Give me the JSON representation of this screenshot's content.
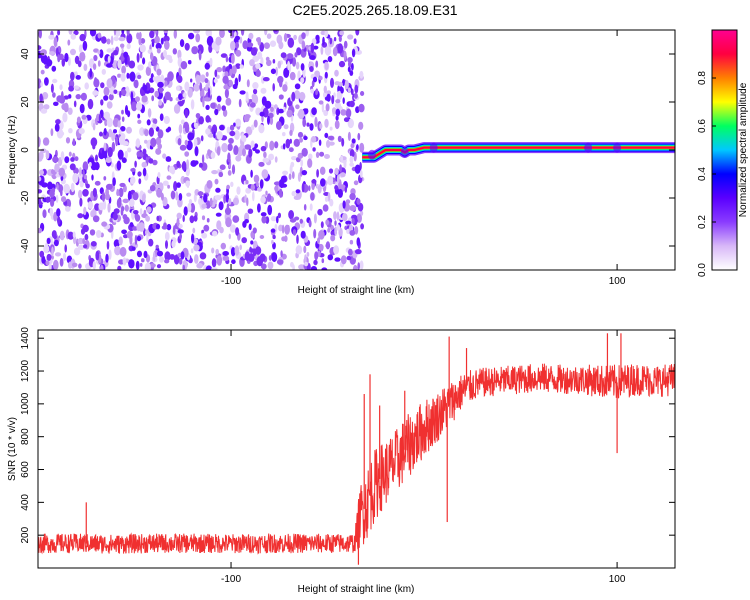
{
  "title": "C2E5.2025.265.18.09.E31",
  "chart_data": [
    {
      "type": "heatmap",
      "title": "",
      "xlabel": "Height of straight line (km)",
      "ylabel": "Frequency (Hz)",
      "xlim": [
        -200,
        130
      ],
      "ylim": [
        -50,
        50
      ],
      "xticks": [
        -100,
        100
      ],
      "yticks": [
        -40,
        -20,
        0,
        20,
        40
      ],
      "colorbar": {
        "label": "Normalized spectral amplitude",
        "range": [
          0.0,
          1.0
        ],
        "ticks": [
          0.0,
          0.2,
          0.4,
          0.6,
          0.8
        ],
        "colors": [
          "#ffffff",
          "#d8b8f8",
          "#8a3cff",
          "#5a00ff",
          "#0000ff",
          "#00c8ff",
          "#00ff60",
          "#ffff00",
          "#ff8000",
          "#ff0040",
          "#ff0090"
        ]
      },
      "noise_region": {
        "x": [
          -200,
          -32
        ],
        "y": [
          -50,
          50
        ],
        "amplitude": 0.15
      },
      "signal_line": {
        "frequency": 0.5,
        "amplitude": 0.9,
        "points": [
          [
            -32,
            -3
          ],
          [
            -28,
            -3
          ],
          [
            -26,
            -3
          ],
          [
            -24,
            -2
          ],
          [
            -22,
            -1
          ],
          [
            -20,
            0
          ],
          [
            -15,
            0
          ],
          [
            -12,
            0
          ],
          [
            -10,
            -1
          ],
          [
            -8,
            0
          ],
          [
            -5,
            0
          ],
          [
            0,
            1
          ],
          [
            5,
            1
          ],
          [
            10,
            1
          ],
          [
            130,
            1
          ]
        ]
      }
    },
    {
      "type": "line",
      "title": "",
      "xlabel": "Height of straight line (km)",
      "ylabel": "SNR (10 * v/v)",
      "xlim": [
        -200,
        130
      ],
      "ylim": [
        0,
        1450
      ],
      "xticks": [
        -100,
        100
      ],
      "yticks": [
        200,
        400,
        600,
        800,
        1000,
        1200,
        1400
      ],
      "series": [
        {
          "color": "#f03030",
          "x": [
            -200,
            -180,
            -160,
            -140,
            -120,
            -100,
            -80,
            -60,
            -40,
            -36,
            -33,
            -30,
            -27,
            -24,
            -20,
            -15,
            -10,
            -5,
            0,
            5,
            10,
            15,
            20,
            25,
            30,
            40,
            50,
            60,
            70,
            80,
            90,
            100,
            110,
            120,
            130
          ],
          "y": [
            150,
            150,
            145,
            150,
            150,
            148,
            150,
            150,
            150,
            152,
            320,
            380,
            470,
            530,
            580,
            640,
            720,
            780,
            850,
            900,
            960,
            1020,
            1080,
            1110,
            1130,
            1140,
            1150,
            1160,
            1150,
            1150,
            1140,
            1130,
            1150,
            1140,
            1150
          ],
          "noise": [
            60,
            60,
            60,
            60,
            60,
            60,
            60,
            60,
            60,
            60,
            200,
            220,
            230,
            220,
            200,
            200,
            200,
            190,
            180,
            160,
            150,
            130,
            110,
            100,
            90,
            90,
            90,
            90,
            90,
            90,
            100,
            110,
            100,
            100,
            100
          ]
        }
      ],
      "spikes": [
        [
          -175,
          400
        ],
        [
          -31,
          1060
        ],
        [
          -28,
          1180
        ],
        [
          -23,
          990
        ],
        [
          -10,
          1080
        ],
        [
          13,
          1410
        ],
        [
          12,
          280
        ],
        [
          22,
          1340
        ],
        [
          95,
          1430
        ],
        [
          102,
          1430
        ],
        [
          100,
          700
        ],
        [
          -34,
          20
        ]
      ]
    }
  ]
}
